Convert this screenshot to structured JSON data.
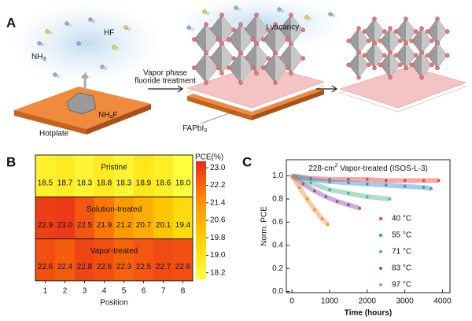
{
  "panel_labels": [
    "A",
    "B",
    "C"
  ],
  "schematic": {
    "hf": "HF",
    "nh3": {
      "main": "NH",
      "sub": "3"
    },
    "nh4f": {
      "main": "NH",
      "sub": "4",
      "end": "F"
    },
    "hotplate": "Hotplate",
    "treatment": [
      "Vapor phase",
      "fluoride treatment"
    ],
    "vacancy": "I vacancy",
    "fapbi3": {
      "main": "FAPbI",
      "sub": "3"
    }
  },
  "chart_data": [
    {
      "type": "heatmap",
      "xlabel": "Position",
      "categories": [
        "1",
        "2",
        "3",
        "4",
        "5",
        "6",
        "7",
        "8"
      ],
      "rows": [
        {
          "name": "Pristine",
          "values": [
            18.5,
            18.7,
            18.3,
            18.8,
            18.3,
            18.9,
            18.6,
            18.0
          ],
          "value_labels": [
            "18.5",
            "18.7",
            "18.3",
            "18.8",
            "18.3",
            "18.9",
            "18.6",
            "18.0"
          ]
        },
        {
          "name": "Solution-treated",
          "values": [
            22.9,
            23.0,
            22.5,
            21.9,
            21.2,
            20.7,
            20.1,
            19.4
          ],
          "value_labels": [
            "22.9",
            "23.0",
            "22.5",
            "21.9",
            "21.2",
            "20.7",
            "20.1",
            "19.4"
          ]
        },
        {
          "name": "Vapor-treated",
          "values": [
            22.6,
            22.4,
            22.8,
            22.6,
            22.3,
            22.5,
            22.7,
            22.6
          ],
          "value_labels": [
            "22.6",
            "22.4",
            "22.8",
            "22.6",
            "22.3",
            "22.5",
            "22.7",
            "22.6"
          ]
        }
      ],
      "colorbar": {
        "label": "PCE(%)",
        "lim": [
          17.9,
          23.3
        ],
        "ticks": [
          {
            "value": 23,
            "label": "23.0"
          },
          22.2,
          21.4,
          20.6,
          19.8,
          {
            "value": 19,
            "label": "19.0"
          },
          18.2
        ],
        "colormap": [
          "#ffff40",
          "#ffd400",
          "#ff9000",
          "#e8281c"
        ]
      }
    },
    {
      "type": "scatter",
      "title": {
        "main": "228-cm",
        "sup": "2",
        "end": " Vapor-treated (ISOS-L-3)"
      },
      "xlabel": "Time (hours)",
      "ylabel": "Norm. PCE",
      "xlim": [
        -150,
        4200
      ],
      "ylim": [
        -0.01,
        1.14
      ],
      "xticks": [
        0,
        1000,
        2000,
        3000,
        4000
      ],
      "yticks": [
        {
          "value": 0,
          "label": "0.0"
        },
        0.2,
        0.4,
        0.6,
        0.8,
        {
          "value": 1,
          "label": "1.0"
        }
      ],
      "legend": "lower right",
      "series": [
        {
          "name": "40 °C",
          "color": "#e8413c",
          "x": [
            0,
            500,
            1000,
            1500,
            2000,
            2500,
            3000,
            3500,
            3900
          ],
          "values": [
            1.0,
            0.98,
            0.97,
            0.97,
            0.97,
            0.96,
            0.96,
            0.96,
            0.96
          ]
        },
        {
          "name": "55 °C",
          "color": "#3a8fd0",
          "x": [
            0,
            500,
            1000,
            1500,
            2000,
            2500,
            3000,
            3500,
            3700
          ],
          "values": [
            1.0,
            0.97,
            0.95,
            0.94,
            0.93,
            0.92,
            0.91,
            0.9,
            0.89
          ]
        },
        {
          "name": "71 °C",
          "color": "#4bb58a",
          "x": [
            0,
            500,
            1000,
            1500,
            2000,
            2600
          ],
          "values": [
            1.0,
            0.94,
            0.88,
            0.85,
            0.82,
            0.8
          ]
        },
        {
          "name": "83 °C",
          "color": "#8a50a8",
          "x": [
            0,
            300,
            600,
            900,
            1200,
            1500,
            1800
          ],
          "values": [
            1.0,
            0.93,
            0.87,
            0.82,
            0.78,
            0.75,
            0.72
          ]
        },
        {
          "name": "97 °C",
          "color": "#f0903a",
          "x": [
            0,
            200,
            400,
            600,
            800,
            950
          ],
          "values": [
            1.0,
            0.9,
            0.8,
            0.71,
            0.63,
            0.58
          ]
        }
      ]
    }
  ]
}
